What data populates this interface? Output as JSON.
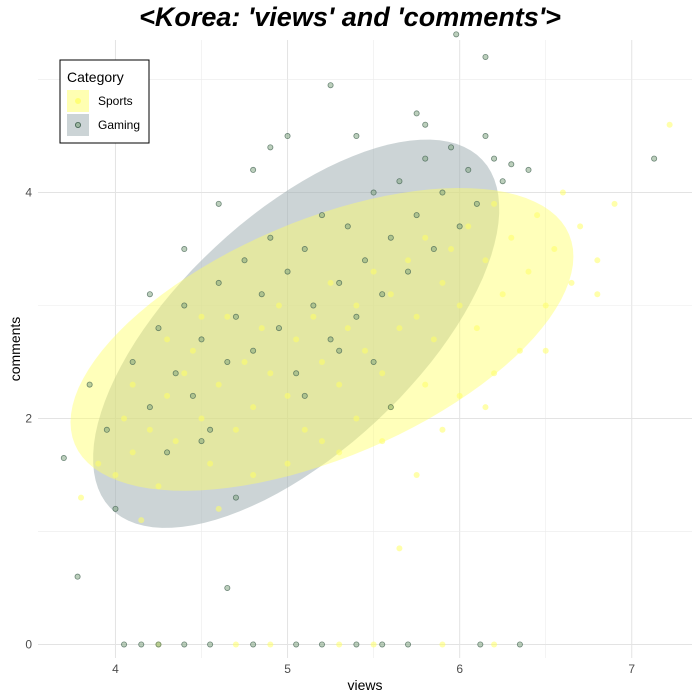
{
  "chart_data": {
    "type": "scatter",
    "title": "<Korea: 'views' and 'comments'>",
    "xlabel": "views",
    "ylabel": "comments",
    "xlim": [
      3.55,
      7.35
    ],
    "ylim": [
      -0.12,
      5.35
    ],
    "x_ticks": [
      4,
      5,
      6,
      7
    ],
    "y_ticks": [
      0,
      2,
      4
    ],
    "grid": true,
    "legend": {
      "title": "Category",
      "position": "top-left"
    },
    "series": [
      {
        "name": "Sports",
        "color": "#FFFF66",
        "ellipse": {
          "center": [
            5.2,
            2.7
          ],
          "semi_axis_x": 1.56,
          "semi_axis_y": 1.05,
          "angle_deg": 23
        },
        "points": [
          [
            3.8,
            1.3
          ],
          [
            3.9,
            1.6
          ],
          [
            4.0,
            1.5
          ],
          [
            4.05,
            2.0
          ],
          [
            4.1,
            1.7
          ],
          [
            4.2,
            1.9
          ],
          [
            4.15,
            1.1
          ],
          [
            4.3,
            2.2
          ],
          [
            4.25,
            1.4
          ],
          [
            4.4,
            2.4
          ],
          [
            4.35,
            1.8
          ],
          [
            4.5,
            2.0
          ],
          [
            4.45,
            2.6
          ],
          [
            4.55,
            1.6
          ],
          [
            4.6,
            2.3
          ],
          [
            4.65,
            2.9
          ],
          [
            4.7,
            1.9
          ],
          [
            4.75,
            2.5
          ],
          [
            4.8,
            2.1
          ],
          [
            4.85,
            2.8
          ],
          [
            4.9,
            2.4
          ],
          [
            4.95,
            3.0
          ],
          [
            5.0,
            2.2
          ],
          [
            5.05,
            2.7
          ],
          [
            5.1,
            1.9
          ],
          [
            5.15,
            2.9
          ],
          [
            5.2,
            2.5
          ],
          [
            5.25,
            3.2
          ],
          [
            5.3,
            2.3
          ],
          [
            5.35,
            2.8
          ],
          [
            5.4,
            3.0
          ],
          [
            5.45,
            2.6
          ],
          [
            5.5,
            3.3
          ],
          [
            5.55,
            2.4
          ],
          [
            5.6,
            3.1
          ],
          [
            5.65,
            2.8
          ],
          [
            5.7,
            3.4
          ],
          [
            5.75,
            2.9
          ],
          [
            5.8,
            3.6
          ],
          [
            5.85,
            2.7
          ],
          [
            5.9,
            3.2
          ],
          [
            5.95,
            3.5
          ],
          [
            6.0,
            3.0
          ],
          [
            6.05,
            3.7
          ],
          [
            6.1,
            2.8
          ],
          [
            6.15,
            3.4
          ],
          [
            6.2,
            3.9
          ],
          [
            6.25,
            3.1
          ],
          [
            6.3,
            3.6
          ],
          [
            6.35,
            2.6
          ],
          [
            6.4,
            3.3
          ],
          [
            6.45,
            3.8
          ],
          [
            6.5,
            3.0
          ],
          [
            6.55,
            3.5
          ],
          [
            6.6,
            4.0
          ],
          [
            6.65,
            3.2
          ],
          [
            6.7,
            3.7
          ],
          [
            6.8,
            3.4
          ],
          [
            6.9,
            3.9
          ],
          [
            7.22,
            4.6
          ],
          [
            5.0,
            1.6
          ],
          [
            5.2,
            1.8
          ],
          [
            5.4,
            2.0
          ],
          [
            5.6,
            2.1
          ],
          [
            5.8,
            2.3
          ],
          [
            5.9,
            1.9
          ],
          [
            6.0,
            2.2
          ],
          [
            6.2,
            2.4
          ],
          [
            5.75,
            1.5
          ],
          [
            5.65,
            0.85
          ],
          [
            4.6,
            1.2
          ],
          [
            4.8,
            1.5
          ],
          [
            5.3,
            1.7
          ],
          [
            5.55,
            1.8
          ],
          [
            4.1,
            2.3
          ],
          [
            4.3,
            2.7
          ],
          [
            4.5,
            2.9
          ],
          [
            6.15,
            2.1
          ],
          [
            6.5,
            2.6
          ],
          [
            6.8,
            3.1
          ],
          [
            4.7,
            0
          ],
          [
            5.3,
            0
          ],
          [
            5.5,
            0
          ],
          [
            5.9,
            0
          ],
          [
            4.25,
            0
          ],
          [
            4.9,
            0
          ],
          [
            6.2,
            0
          ]
        ]
      },
      {
        "name": "Gaming",
        "color": "#A3B1B5",
        "ellipse": {
          "center": [
            5.05,
            2.75
          ],
          "semi_axis_x": 1.48,
          "semi_axis_y": 1.05,
          "angle_deg": 43
        },
        "points": [
          [
            3.7,
            1.65
          ],
          [
            3.85,
            2.3
          ],
          [
            3.95,
            1.9
          ],
          [
            4.1,
            2.5
          ],
          [
            4.0,
            1.2
          ],
          [
            4.2,
            2.1
          ],
          [
            4.25,
            2.8
          ],
          [
            4.3,
            1.7
          ],
          [
            4.35,
            2.4
          ],
          [
            4.4,
            3.0
          ],
          [
            4.45,
            2.2
          ],
          [
            4.5,
            2.7
          ],
          [
            4.55,
            1.9
          ],
          [
            4.6,
            3.2
          ],
          [
            4.65,
            2.5
          ],
          [
            4.7,
            2.9
          ],
          [
            4.75,
            3.4
          ],
          [
            4.8,
            2.6
          ],
          [
            4.85,
            3.1
          ],
          [
            4.9,
            3.6
          ],
          [
            4.95,
            2.8
          ],
          [
            5.0,
            3.3
          ],
          [
            5.05,
            2.4
          ],
          [
            5.1,
            3.5
          ],
          [
            5.15,
            3.0
          ],
          [
            5.2,
            3.8
          ],
          [
            5.25,
            2.7
          ],
          [
            5.3,
            3.2
          ],
          [
            5.35,
            3.7
          ],
          [
            5.4,
            2.9
          ],
          [
            5.45,
            3.4
          ],
          [
            5.5,
            4.0
          ],
          [
            5.55,
            3.1
          ],
          [
            5.6,
            3.6
          ],
          [
            5.65,
            4.1
          ],
          [
            5.7,
            3.3
          ],
          [
            5.75,
            3.8
          ],
          [
            5.8,
            4.3
          ],
          [
            5.85,
            3.5
          ],
          [
            5.9,
            4.0
          ],
          [
            5.95,
            4.4
          ],
          [
            6.0,
            3.7
          ],
          [
            6.05,
            4.2
          ],
          [
            6.1,
            3.9
          ],
          [
            6.15,
            4.5
          ],
          [
            6.2,
            4.3
          ],
          [
            6.25,
            4.1
          ],
          [
            6.3,
            4.25
          ],
          [
            5.98,
            5.4
          ],
          [
            6.15,
            5.2
          ],
          [
            5.0,
            4.5
          ],
          [
            4.9,
            4.4
          ],
          [
            5.25,
            4.95
          ],
          [
            5.75,
            4.7
          ],
          [
            6.4,
            4.2
          ],
          [
            7.13,
            4.3
          ],
          [
            3.78,
            0.6
          ],
          [
            4.65,
            0.5
          ],
          [
            4.7,
            1.3
          ],
          [
            4.5,
            1.8
          ],
          [
            5.5,
            2.5
          ],
          [
            5.6,
            2.1
          ],
          [
            5.1,
            2.2
          ],
          [
            5.3,
            2.6
          ],
          [
            4.2,
            3.1
          ],
          [
            4.4,
            3.5
          ],
          [
            4.6,
            3.9
          ],
          [
            4.8,
            4.2
          ],
          [
            5.4,
            4.5
          ],
          [
            5.8,
            4.6
          ],
          [
            4.05,
            0
          ],
          [
            4.15,
            0
          ],
          [
            4.25,
            0
          ],
          [
            4.4,
            0
          ],
          [
            4.55,
            0
          ],
          [
            4.8,
            0
          ],
          [
            5.05,
            0
          ],
          [
            5.2,
            0
          ],
          [
            5.4,
            0
          ],
          [
            5.55,
            0
          ],
          [
            5.7,
            0
          ],
          [
            6.12,
            0
          ],
          [
            6.35,
            0
          ]
        ]
      }
    ]
  }
}
